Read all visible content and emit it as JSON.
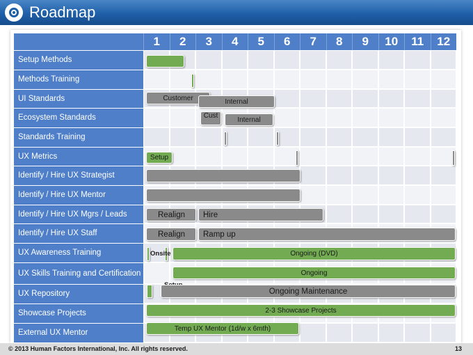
{
  "header": {
    "title": "Roadmap",
    "logo_icon": "eye-logo-icon"
  },
  "columns": [
    "1",
    "2",
    "3",
    "4",
    "5",
    "6",
    "7",
    "8",
    "9",
    "10",
    "11",
    "12"
  ],
  "rows": [
    "Setup Methods",
    "Methods Training",
    "UI Standards",
    "Ecosystem Standards",
    "Standards Training",
    "UX Metrics",
    "Identify / Hire UX Strategist",
    "Identify / Hire UX Mentor",
    "Identify / Hire UX Mgrs / Leads",
    "Identify / Hire UX Staff",
    "UX Awareness Training",
    "UX Skills Training and Certification",
    "UX Repository",
    "Showcase Projects",
    "External UX Mentor"
  ],
  "bar_labels": {
    "customer": "Customer",
    "internal": "Internal",
    "cust": "Cust",
    "internal2": "Internal",
    "setup": "Setup",
    "realign": "Realign",
    "hire": "Hire",
    "realign2": "Realign",
    "ramp_up": "Ramp up",
    "onsite": "Onsite",
    "ongoing_dvd": "Ongoing (DVD)",
    "ongoing": "Ongoing",
    "setup2": "Setup",
    "ongoing_maintenance": "Ongoing Maintenance",
    "showcase": "2-3 Showcase Projects",
    "temp_mentor": "Temp UX Mentor (1d/w x 6mth)"
  },
  "colors": {
    "header_blue": "#1f5fa8",
    "label_blue": "#4f7fc9",
    "green": "#72ab52",
    "gray": "#8a8a8a"
  },
  "footer": {
    "copyright": "© 2013 Human Factors International, Inc. All rights reserved.",
    "page": "13"
  }
}
